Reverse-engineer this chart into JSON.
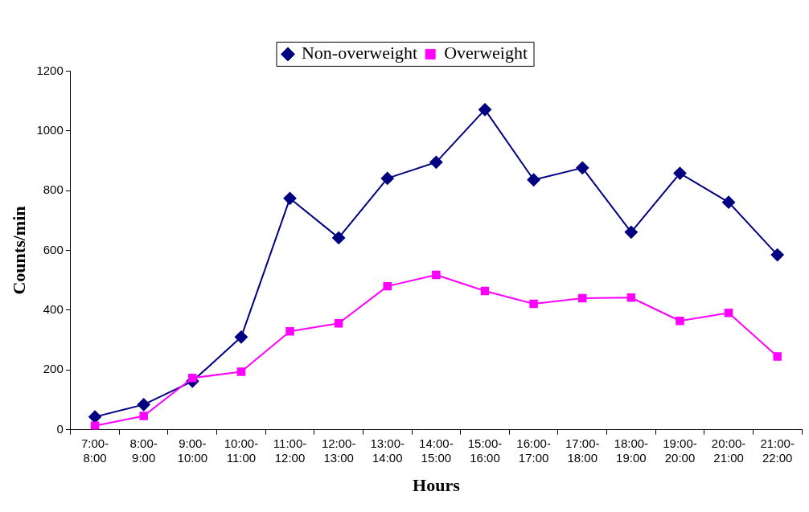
{
  "chart_data": {
    "type": "line",
    "xlabel": "Hours",
    "ylabel": "Counts/min",
    "categories": [
      "7:00-8:00",
      "8:00-9:00",
      "9:00-10:00",
      "10:00-11:00",
      "11:00-12:00",
      "12:00-13:00",
      "13:00-14:00",
      "14:00-15:00",
      "15:00-16:00",
      "16:00-17:00",
      "17:00-18:00",
      "18:00-19:00",
      "19:00-20:00",
      "20:00-21:00",
      "21:00-22:00"
    ],
    "series": [
      {
        "name": "Non-overweight",
        "color": "#000080",
        "marker": "diamond",
        "values": [
          43,
          84,
          162,
          310,
          774,
          642,
          841,
          895,
          1071,
          836,
          876,
          661,
          858,
          761,
          585
        ]
      },
      {
        "name": "Overweight",
        "color": "#ff00ff",
        "marker": "square",
        "values": [
          13,
          46,
          173,
          194,
          329,
          356,
          480,
          518,
          464,
          421,
          440,
          442,
          364,
          391,
          245
        ]
      }
    ],
    "ylim": [
      0,
      1200
    ],
    "yticks": [
      0,
      200,
      400,
      600,
      800,
      1000,
      1200
    ],
    "grid": false,
    "legend": "top",
    "line_style": "solid"
  }
}
